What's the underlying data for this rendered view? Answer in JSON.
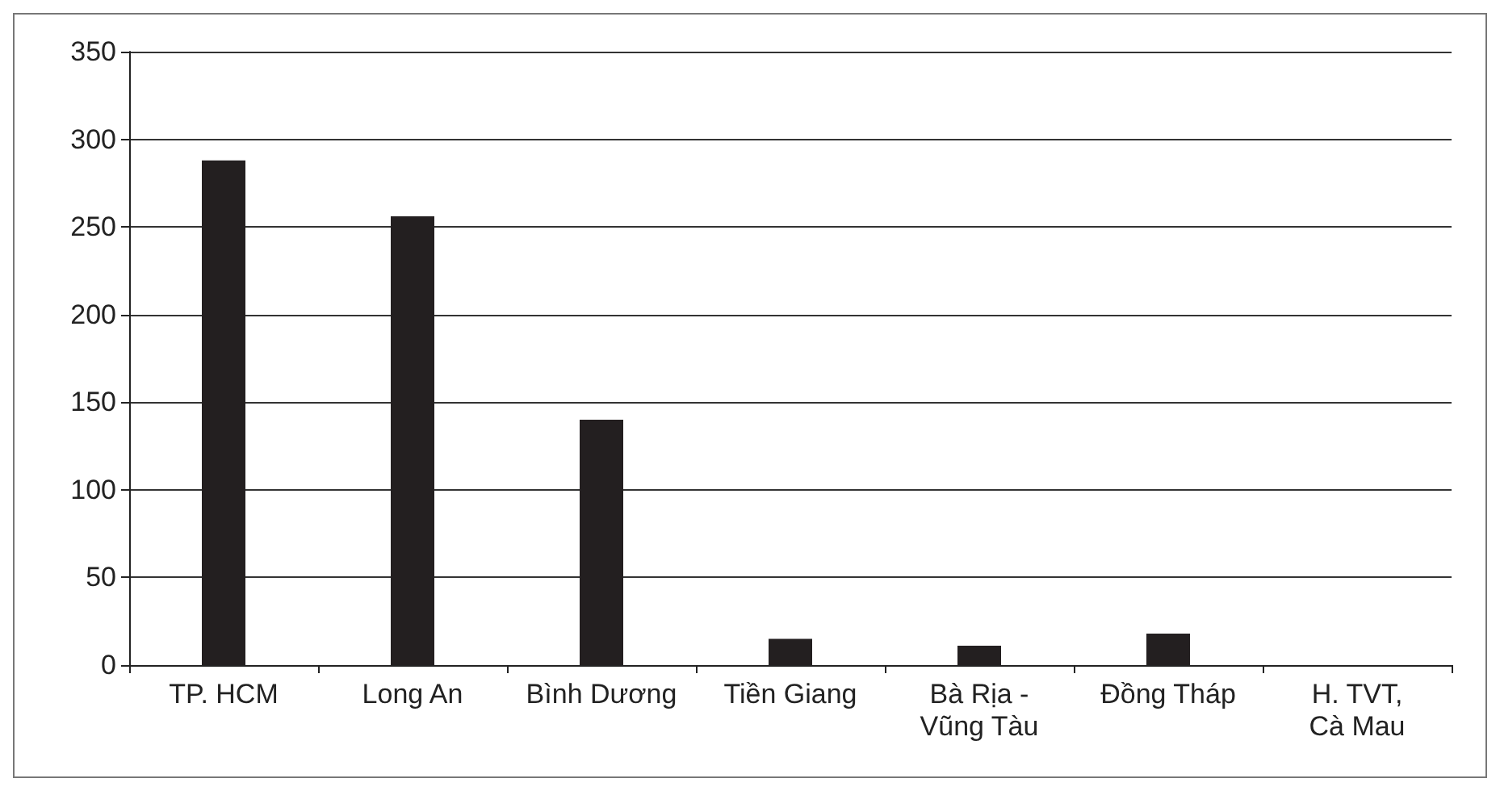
{
  "chart_data": {
    "type": "bar",
    "categories": [
      "TP. HCM",
      "Long An",
      "Bình Dương",
      "Tiền Giang",
      "Bà Rịa -\nVũng Tàu",
      "Đồng Tháp",
      "H. TVT,\nCà Mau"
    ],
    "values": [
      288,
      256,
      140,
      15,
      11,
      18,
      0
    ],
    "color": "#231f20",
    "ylim": [
      0,
      350
    ],
    "yticks": [
      0,
      50,
      100,
      150,
      200,
      250,
      300,
      350
    ],
    "grid": "y"
  }
}
